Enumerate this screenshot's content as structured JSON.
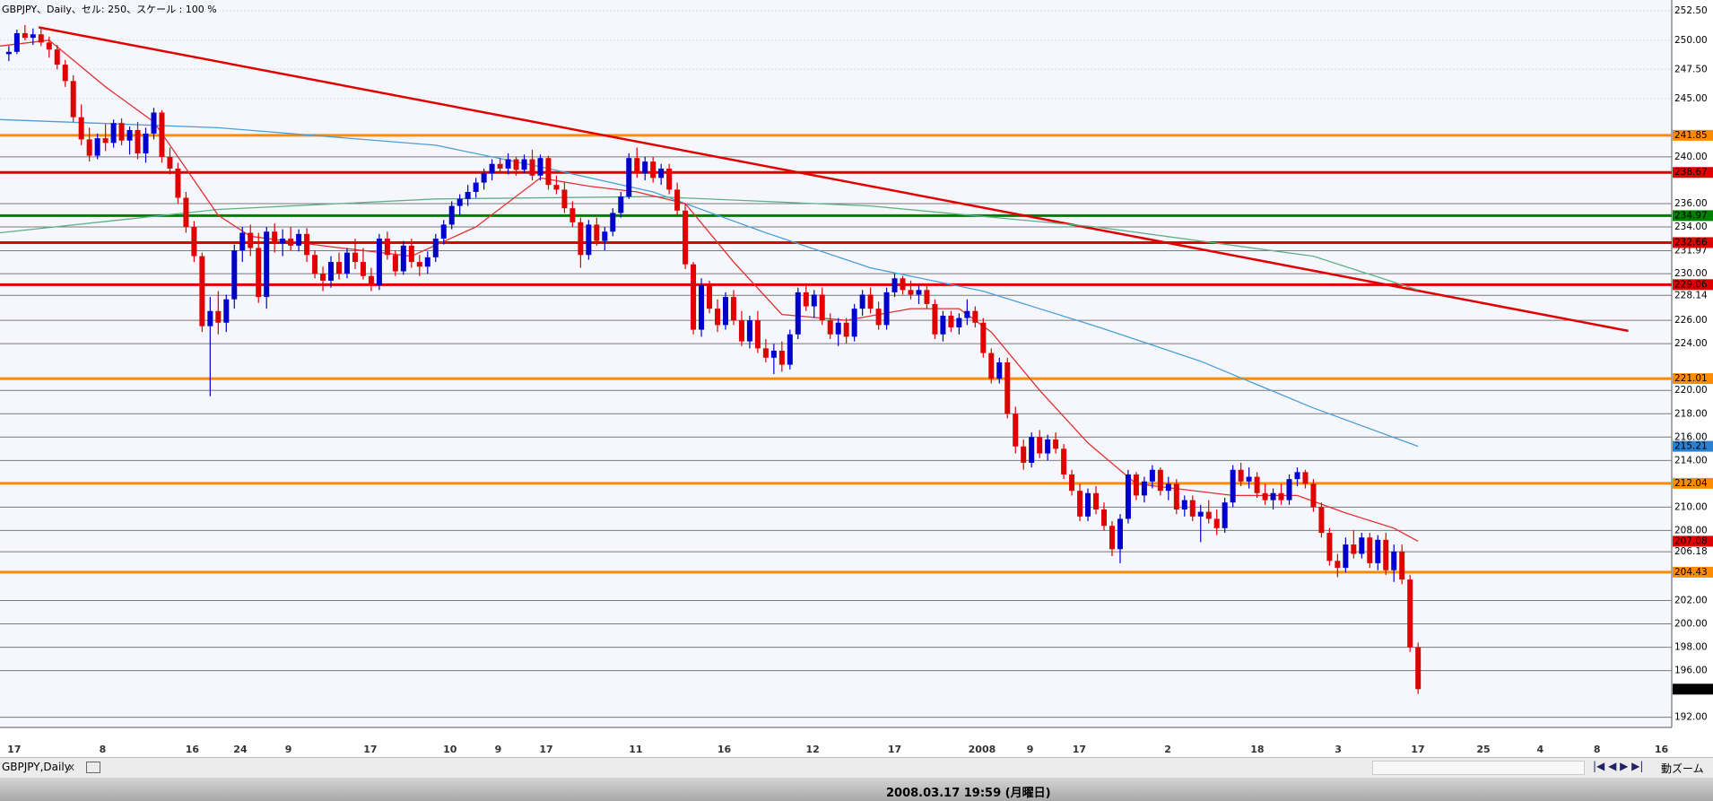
{
  "chart_data": {
    "type": "candlestick",
    "title": "GBPJPY、Daily、セル: 250、スケール : 100 %",
    "up_color": "#0000cc",
    "down_color": "#e00000",
    "xlim": [
      -1.1,
      206.5
    ],
    "ylim": [
      191.13,
      253.44
    ],
    "yticks": [
      {
        "value": 252.5,
        "label": "252.50"
      },
      {
        "value": 250,
        "label": "250.00"
      },
      {
        "value": 247.5,
        "label": "247.50"
      },
      {
        "value": 245,
        "label": "245.00"
      },
      {
        "value": 240,
        "label": "240.00"
      },
      {
        "value": 236,
        "label": "236.00"
      },
      {
        "value": 234,
        "label": "234.00"
      },
      231.97,
      {
        "value": 230,
        "label": "230.00"
      },
      228.14,
      {
        "value": 226,
        "label": "226.00"
      },
      {
        "value": 224,
        "label": "224.00"
      },
      {
        "value": 220,
        "label": "220.00"
      },
      {
        "value": 218,
        "label": "218.00"
      },
      {
        "value": 216,
        "label": "216.00"
      },
      {
        "value": 214,
        "label": "214.00"
      },
      {
        "value": 210,
        "label": "210.00"
      },
      {
        "value": 208,
        "label": "208.00"
      },
      206.18,
      {
        "value": 202,
        "label": "202.00"
      },
      {
        "value": 200,
        "label": "200.00"
      },
      {
        "value": 198,
        "label": "198.00"
      },
      {
        "value": 196,
        "label": "196.00"
      },
      {
        "value": 192,
        "label": "192.00"
      }
    ],
    "xtick_labels": [
      "17",
      "8",
      "16",
      "24",
      "9",
      "17",
      "10",
      "9",
      "17",
      "11",
      "16",
      "12",
      "17",
      "2008",
      "9",
      "17",
      "2",
      "18",
      "3",
      "17",
      "25",
      "4",
      "8",
      "16"
    ],
    "levels": [
      {
        "value": 241.85,
        "color": "#ff8c00"
      },
      {
        "value": 238.67,
        "color": "#e00000"
      },
      {
        "value": 234.97,
        "color": "#008000"
      },
      {
        "value": 232.66,
        "color": "#e00000"
      },
      {
        "value": 229.06,
        "color": "#e00000"
      },
      {
        "value": 221.01,
        "color": "#ff8c00"
      },
      {
        "value": 212.04,
        "color": "#ff8c00"
      },
      {
        "value": 204.43,
        "color": "#ff8c00"
      }
    ],
    "trendline": {
      "color": "#e00000",
      "x": [
        3.7,
        201.1
      ],
      "values": [
        251.1,
        225.1
      ]
    },
    "moving_averages": [
      {
        "color": "#4a9fd8",
        "x": [
          -1.1,
          26,
          53,
          67,
          80,
          94,
          107,
          121,
          135,
          148,
          162,
          175
        ],
        "values": [
          243.2,
          242.5,
          241.0,
          239.0,
          237.0,
          233.5,
          230.5,
          228.5,
          225.5,
          222.5,
          218.5,
          215.21
        ]
      },
      {
        "color": "#5fb08a",
        "x": [
          -1.1,
          26,
          53,
          80,
          107,
          135,
          162,
          175
        ],
        "values": [
          233.5,
          235.5,
          236.4,
          236.6,
          235.8,
          234.0,
          231.5,
          228.6
        ]
      },
      {
        "color": "#e03030",
        "x": [
          -1.1,
          5,
          12,
          18,
          22,
          26,
          30,
          40,
          50,
          58,
          66,
          72,
          78,
          84,
          90,
          96,
          104,
          112,
          118,
          122,
          128,
          134,
          140,
          146,
          152,
          160,
          166,
          172,
          175
        ],
        "values": [
          249.5,
          250.0,
          246,
          243,
          239,
          235,
          233.2,
          232.3,
          231.5,
          234,
          238.2,
          237.5,
          237,
          236,
          231,
          226.5,
          226.0,
          227.0,
          227.0,
          225,
          220,
          215.5,
          212.0,
          211.5,
          211.0,
          211.0,
          209.5,
          208.2,
          207.08
        ]
      }
    ],
    "ohlc": [
      [
        248.8,
        249.5,
        248.2,
        249.0
      ],
      [
        249.0,
        250.9,
        248.8,
        250.6
      ],
      [
        250.6,
        251.3,
        250.0,
        250.2
      ],
      [
        250.2,
        251.0,
        249.6,
        250.5
      ],
      [
        250.5,
        251.0,
        249.5,
        249.8
      ],
      [
        249.8,
        250.3,
        248.5,
        249.2
      ],
      [
        249.2,
        249.6,
        247.5,
        247.9
      ],
      [
        247.9,
        248.3,
        246.0,
        246.5
      ],
      [
        246.5,
        247.0,
        243.0,
        243.4
      ],
      [
        243.4,
        244.5,
        241.0,
        241.5
      ],
      [
        241.5,
        242.5,
        239.6,
        240.1
      ],
      [
        240.1,
        242.0,
        239.8,
        241.6
      ],
      [
        241.6,
        242.8,
        240.5,
        241.2
      ],
      [
        241.2,
        243.2,
        240.8,
        242.9
      ],
      [
        242.9,
        243.3,
        241.0,
        241.4
      ],
      [
        241.4,
        242.6,
        240.2,
        242.3
      ],
      [
        242.3,
        243.0,
        239.8,
        240.3
      ],
      [
        240.3,
        242.5,
        239.5,
        242.0
      ],
      [
        242.0,
        244.2,
        241.5,
        243.8
      ],
      [
        243.8,
        244.0,
        239.5,
        240.0
      ],
      [
        240.0,
        240.8,
        238.5,
        239.0
      ],
      [
        239.0,
        239.5,
        236.0,
        236.5
      ],
      [
        236.5,
        237.0,
        233.5,
        234.0
      ],
      [
        234.0,
        234.5,
        231.0,
        231.5
      ],
      [
        231.5,
        231.8,
        225.0,
        225.5
      ],
      [
        225.5,
        228.0,
        219.5,
        226.8
      ],
      [
        226.8,
        228.5,
        224.8,
        225.8
      ],
      [
        225.8,
        228.2,
        225.0,
        227.8
      ],
      [
        227.8,
        232.5,
        227.0,
        232.0
      ],
      [
        232.0,
        234.0,
        231.0,
        233.5
      ],
      [
        233.5,
        234.2,
        231.5,
        232.2
      ],
      [
        232.2,
        233.5,
        227.5,
        228.0
      ],
      [
        228.0,
        234.0,
        227.0,
        233.6
      ],
      [
        233.6,
        234.3,
        231.8,
        232.6
      ],
      [
        232.6,
        233.8,
        231.5,
        233.0
      ],
      [
        233.0,
        234.0,
        232.0,
        232.4
      ],
      [
        232.4,
        233.8,
        231.9,
        233.4
      ],
      [
        233.4,
        233.9,
        231.0,
        231.6
      ],
      [
        231.6,
        232.0,
        229.6,
        230.0
      ],
      [
        230.0,
        230.6,
        228.5,
        229.4
      ],
      [
        229.4,
        231.5,
        228.8,
        231.0
      ],
      [
        231.0,
        231.8,
        229.5,
        230.0
      ],
      [
        230.0,
        232.2,
        229.6,
        231.8
      ],
      [
        231.8,
        233.0,
        230.4,
        231.0
      ],
      [
        231.0,
        232.2,
        229.5,
        229.8
      ],
      [
        229.8,
        230.5,
        228.5,
        229.0
      ],
      [
        229.0,
        233.4,
        228.6,
        233.0
      ],
      [
        233.0,
        233.6,
        231.2,
        231.6
      ],
      [
        231.6,
        232.0,
        229.8,
        230.2
      ],
      [
        230.2,
        232.8,
        229.9,
        232.4
      ],
      [
        232.4,
        233.0,
        230.5,
        231.0
      ],
      [
        231.0,
        231.6,
        229.8,
        230.6
      ],
      [
        230.6,
        231.9,
        230.0,
        231.4
      ],
      [
        231.4,
        233.4,
        231.0,
        233.0
      ],
      [
        233.0,
        234.6,
        232.5,
        234.2
      ],
      [
        234.2,
        236.2,
        233.8,
        235.8
      ],
      [
        235.8,
        236.8,
        235.0,
        236.4
      ],
      [
        236.4,
        237.6,
        235.8,
        237.0
      ],
      [
        237.0,
        238.2,
        236.5,
        237.8
      ],
      [
        237.8,
        239.0,
        237.2,
        238.6
      ],
      [
        238.6,
        239.8,
        238.0,
        239.4
      ],
      [
        239.4,
        239.9,
        238.6,
        239.0
      ],
      [
        239.0,
        240.3,
        238.5,
        239.8
      ],
      [
        239.8,
        240.0,
        238.4,
        238.9
      ],
      [
        238.9,
        240.2,
        238.6,
        239.8
      ],
      [
        239.8,
        240.6,
        238.0,
        238.4
      ],
      [
        238.4,
        240.2,
        238.0,
        239.9
      ],
      [
        239.9,
        240.1,
        237.2,
        237.6
      ],
      [
        237.6,
        238.4,
        236.8,
        237.2
      ],
      [
        237.2,
        237.8,
        235.2,
        235.6
      ],
      [
        235.6,
        236.2,
        234.0,
        234.4
      ],
      [
        234.4,
        234.8,
        230.5,
        231.6
      ],
      [
        231.6,
        234.6,
        231.2,
        234.2
      ],
      [
        234.2,
        234.8,
        232.4,
        232.8
      ],
      [
        232.8,
        234.0,
        232.0,
        233.6
      ],
      [
        233.6,
        235.6,
        233.2,
        235.2
      ],
      [
        235.2,
        237.0,
        234.8,
        236.6
      ],
      [
        236.6,
        240.3,
        236.4,
        239.9
      ],
      [
        239.9,
        240.8,
        238.2,
        238.6
      ],
      [
        238.6,
        240.0,
        238.0,
        239.6
      ],
      [
        239.6,
        240.0,
        237.8,
        238.2
      ],
      [
        238.2,
        239.4,
        237.6,
        239.0
      ],
      [
        239.0,
        239.4,
        236.8,
        237.2
      ],
      [
        237.2,
        237.8,
        235.0,
        235.4
      ],
      [
        235.4,
        236.0,
        230.4,
        230.8
      ],
      [
        230.8,
        231.0,
        224.8,
        225.2
      ],
      [
        225.2,
        229.6,
        224.6,
        229.0
      ],
      [
        229.0,
        229.4,
        226.6,
        227.0
      ],
      [
        227.0,
        227.8,
        225.0,
        225.6
      ],
      [
        225.6,
        228.4,
        225.2,
        228.0
      ],
      [
        228.0,
        228.6,
        225.6,
        226.0
      ],
      [
        226.0,
        226.8,
        223.8,
        224.2
      ],
      [
        224.2,
        226.4,
        223.6,
        226.0
      ],
      [
        226.0,
        226.8,
        223.2,
        223.6
      ],
      [
        223.6,
        224.4,
        222.4,
        222.8
      ],
      [
        222.8,
        224.0,
        221.4,
        223.4
      ],
      [
        223.4,
        224.2,
        221.6,
        222.2
      ],
      [
        222.2,
        225.2,
        221.8,
        224.8
      ],
      [
        224.8,
        228.8,
        224.4,
        228.4
      ],
      [
        228.4,
        229.0,
        226.8,
        227.2
      ],
      [
        227.2,
        228.6,
        226.2,
        228.2
      ],
      [
        228.2,
        228.8,
        225.6,
        226.0
      ],
      [
        226.0,
        226.6,
        224.4,
        224.8
      ],
      [
        224.8,
        226.2,
        223.8,
        225.8
      ],
      [
        225.8,
        226.2,
        224.0,
        224.6
      ],
      [
        224.6,
        227.4,
        224.2,
        227.0
      ],
      [
        227.0,
        228.6,
        226.4,
        228.2
      ],
      [
        228.2,
        228.8,
        226.6,
        227.0
      ],
      [
        227.0,
        227.6,
        225.2,
        225.6
      ],
      [
        225.6,
        228.8,
        225.2,
        228.4
      ],
      [
        228.4,
        230.0,
        228.0,
        229.6
      ],
      [
        229.6,
        229.8,
        228.2,
        228.6
      ],
      [
        228.6,
        229.4,
        227.8,
        228.2
      ],
      [
        228.2,
        229.0,
        227.4,
        228.6
      ],
      [
        228.6,
        229.0,
        227.0,
        227.4
      ],
      [
        227.4,
        227.8,
        224.4,
        224.8
      ],
      [
        224.8,
        226.8,
        224.2,
        226.4
      ],
      [
        226.4,
        226.8,
        225.0,
        225.4
      ],
      [
        225.4,
        226.6,
        224.8,
        226.2
      ],
      [
        226.2,
        227.8,
        225.6,
        226.8
      ],
      [
        226.8,
        227.2,
        225.4,
        225.8
      ],
      [
        225.8,
        226.2,
        222.8,
        223.2
      ],
      [
        223.2,
        223.6,
        220.6,
        221.0
      ],
      [
        221.0,
        222.8,
        220.6,
        222.4
      ],
      [
        222.4,
        222.8,
        217.6,
        218.0
      ],
      [
        218.0,
        218.6,
        214.6,
        215.2
      ],
      [
        215.2,
        215.8,
        213.2,
        213.8
      ],
      [
        213.8,
        216.4,
        213.4,
        216.0
      ],
      [
        216.0,
        216.6,
        214.2,
        214.6
      ],
      [
        214.6,
        216.2,
        214.0,
        215.8
      ],
      [
        215.8,
        216.4,
        214.6,
        215.0
      ],
      [
        215.0,
        215.4,
        212.4,
        212.8
      ],
      [
        212.8,
        213.2,
        211.0,
        211.4
      ],
      [
        211.4,
        212.0,
        208.8,
        209.2
      ],
      [
        209.2,
        211.6,
        208.8,
        211.2
      ],
      [
        211.2,
        211.8,
        209.4,
        209.8
      ],
      [
        209.8,
        210.4,
        208.0,
        208.4
      ],
      [
        208.4,
        208.8,
        205.8,
        206.4
      ],
      [
        206.4,
        209.4,
        205.2,
        209.0
      ],
      [
        209.0,
        213.2,
        208.6,
        212.8
      ],
      [
        212.8,
        213.0,
        210.6,
        211.0
      ],
      [
        211.0,
        212.6,
        210.4,
        212.2
      ],
      [
        212.2,
        213.6,
        211.6,
        213.2
      ],
      [
        213.2,
        213.4,
        211.0,
        211.4
      ],
      [
        211.4,
        212.6,
        210.6,
        212.0
      ],
      [
        212.0,
        212.4,
        209.4,
        209.8
      ],
      [
        209.8,
        211.0,
        209.2,
        210.6
      ],
      [
        210.6,
        211.0,
        208.8,
        209.2
      ],
      [
        209.2,
        210.2,
        207.0,
        209.6
      ],
      [
        209.6,
        210.6,
        208.6,
        209.0
      ],
      [
        209.0,
        209.8,
        207.6,
        208.2
      ],
      [
        208.2,
        210.8,
        207.8,
        210.4
      ],
      [
        210.4,
        213.6,
        210.0,
        213.2
      ],
      [
        213.2,
        213.8,
        211.8,
        212.2
      ],
      [
        212.2,
        213.4,
        211.6,
        212.6
      ],
      [
        212.6,
        213.0,
        210.8,
        211.2
      ],
      [
        211.2,
        212.0,
        210.2,
        210.6
      ],
      [
        210.6,
        211.6,
        209.8,
        211.2
      ],
      [
        211.2,
        212.0,
        210.2,
        210.6
      ],
      [
        210.6,
        212.8,
        210.2,
        212.4
      ],
      [
        212.4,
        213.4,
        211.8,
        213.0
      ],
      [
        213.0,
        213.2,
        211.6,
        212.0
      ],
      [
        212.0,
        212.4,
        209.6,
        210.0
      ],
      [
        210.0,
        210.4,
        207.4,
        207.8
      ],
      [
        207.8,
        208.2,
        205.0,
        205.4
      ],
      [
        205.4,
        206.0,
        204.0,
        204.8
      ],
      [
        204.8,
        207.4,
        204.4,
        206.8
      ],
      [
        206.8,
        208.0,
        205.6,
        206.0
      ],
      [
        206.0,
        207.8,
        205.6,
        207.4
      ],
      [
        207.4,
        207.8,
        204.8,
        205.2
      ],
      [
        205.2,
        207.6,
        204.6,
        207.2
      ],
      [
        207.2,
        207.8,
        204.2,
        204.6
      ],
      [
        204.6,
        206.8,
        203.6,
        206.2
      ],
      [
        206.2,
        206.8,
        203.4,
        203.8
      ],
      [
        203.8,
        204.2,
        197.6,
        198.0
      ],
      [
        198.0,
        198.4,
        194.0,
        194.41
      ]
    ]
  },
  "toolbar": {
    "tab": "GBPJPY,Daily",
    "zoom": "動ズーム"
  },
  "status": {
    "datetime": "2008.03.17 19:59 (月曜日)"
  }
}
